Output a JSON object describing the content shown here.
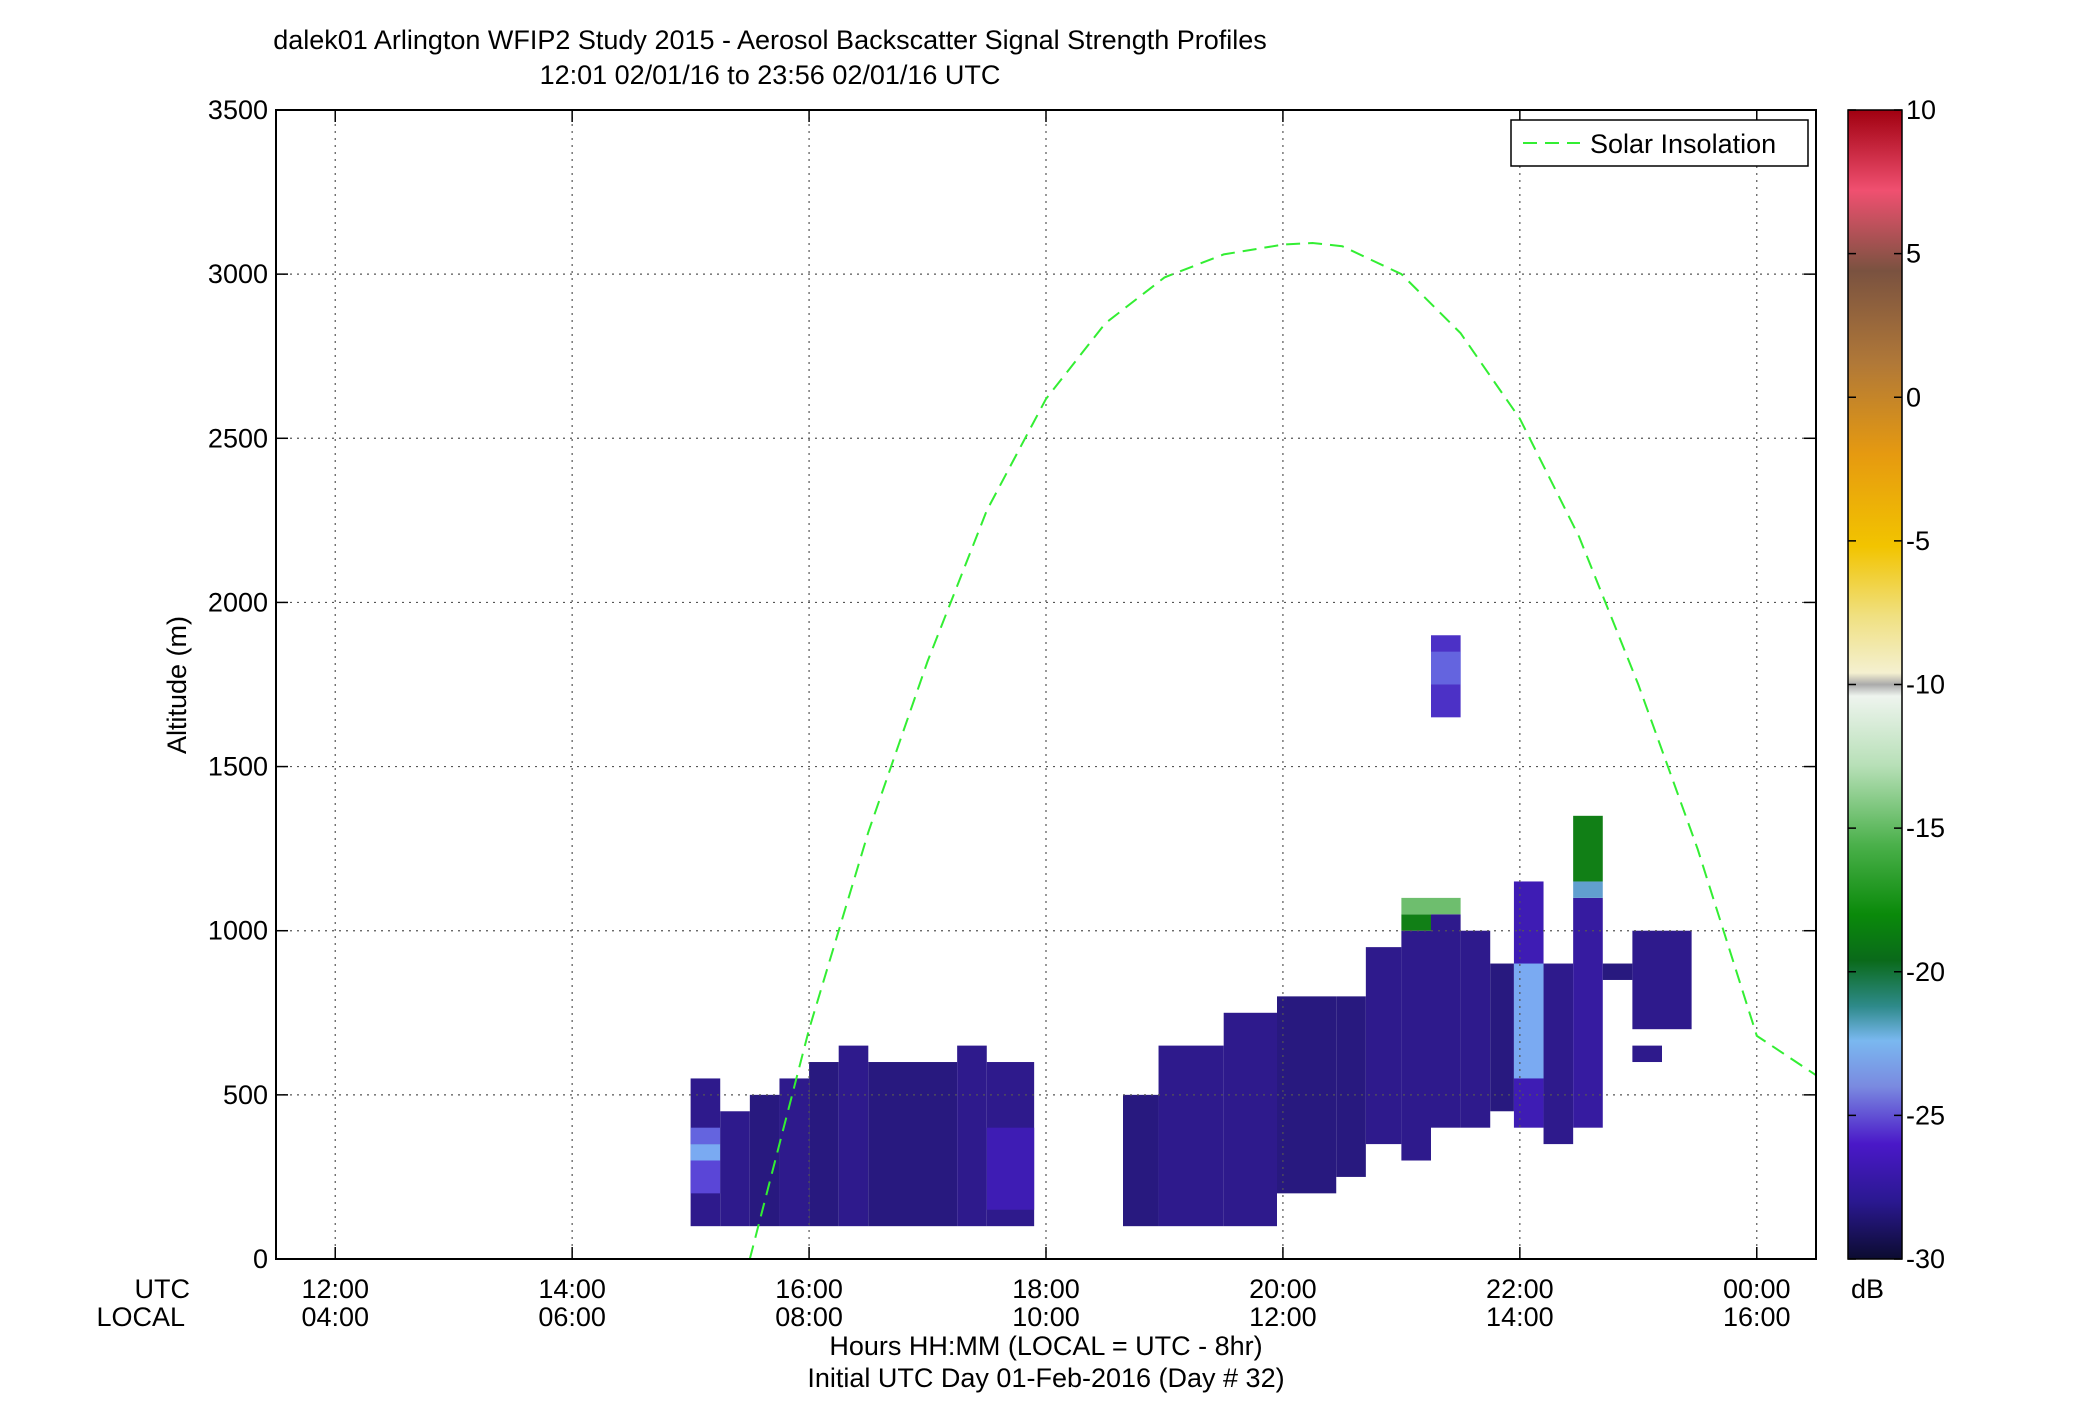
{
  "chart_data": {
    "type": "heatmap",
    "title": "dalek01 Arlington WFIP2 Study 2015 - Aerosol Backscatter Signal Strength Profiles",
    "subtitle": "12:01 02/01/16 to 23:56 02/01/16  UTC",
    "xlabel": "Hours HH:MM  (LOCAL = UTC - 8hr)",
    "xlabel2": "Initial UTC Day 01-Feb-2016 (Day # 32)",
    "ylabel": "Altitude (m)",
    "x_row_labels": [
      "UTC",
      "LOCAL"
    ],
    "x_units": "hours UTC",
    "xlim": [
      11.5,
      24.5
    ],
    "ylim": [
      0,
      3500
    ],
    "grid": true,
    "xticks": [
      {
        "x": 12,
        "utc": "12:00",
        "local": "04:00"
      },
      {
        "x": 14,
        "utc": "14:00",
        "local": "06:00"
      },
      {
        "x": 16,
        "utc": "16:00",
        "local": "08:00"
      },
      {
        "x": 18,
        "utc": "18:00",
        "local": "10:00"
      },
      {
        "x": 20,
        "utc": "20:00",
        "local": "12:00"
      },
      {
        "x": 22,
        "utc": "22:00",
        "local": "14:00"
      },
      {
        "x": 24,
        "utc": "00:00",
        "local": "16:00"
      }
    ],
    "yticks": [
      0,
      500,
      1000,
      1500,
      2000,
      2500,
      3000,
      3500
    ],
    "legend": {
      "placement": "top-right",
      "entries": [
        "Solar Insolation"
      ]
    },
    "solar_insolation": {
      "name": "Solar Insolation",
      "color": "#33ee33",
      "style": "dashed",
      "x": [
        15.5,
        16.0,
        16.5,
        17.0,
        17.5,
        18.0,
        18.5,
        19.0,
        19.5,
        20.0,
        20.25,
        20.5,
        21.0,
        21.5,
        22.0,
        22.5,
        23.0,
        23.5,
        24.0,
        24.5
      ],
      "y": [
        0,
        700,
        1300,
        1820,
        2280,
        2620,
        2850,
        2990,
        3060,
        3090,
        3095,
        3085,
        3000,
        2820,
        2560,
        2200,
        1750,
        1250,
        680,
        560
      ]
    },
    "colorbar": {
      "label": "dB",
      "min": -30,
      "max": 10,
      "ticks": [
        10,
        5,
        0,
        -5,
        -10,
        -15,
        -20,
        -25,
        -30
      ]
    },
    "cell_units": {
      "x0_x1": "hours UTC",
      "y0_y1": "m",
      "v": "dB"
    },
    "cells": [
      {
        "x0": 15.0,
        "x1": 15.25,
        "y0": 100,
        "y1": 550,
        "v": -26.5
      },
      {
        "x0": 15.0,
        "x1": 15.25,
        "y0": 200,
        "y1": 300,
        "v": -24.5
      },
      {
        "x0": 15.0,
        "x1": 15.25,
        "y0": 300,
        "y1": 350,
        "v": -22.5
      },
      {
        "x0": 15.0,
        "x1": 15.25,
        "y0": 350,
        "y1": 400,
        "v": -24.0
      },
      {
        "x0": 15.25,
        "x1": 15.5,
        "y0": 100,
        "y1": 450,
        "v": -26.5
      },
      {
        "x0": 15.5,
        "x1": 15.75,
        "y0": 100,
        "y1": 500,
        "v": -27.0
      },
      {
        "x0": 15.75,
        "x1": 16.0,
        "y0": 100,
        "y1": 550,
        "v": -26.5
      },
      {
        "x0": 16.0,
        "x1": 16.25,
        "y0": 100,
        "y1": 600,
        "v": -27.0
      },
      {
        "x0": 16.25,
        "x1": 16.5,
        "y0": 100,
        "y1": 650,
        "v": -26.5
      },
      {
        "x0": 16.5,
        "x1": 17.25,
        "y0": 100,
        "y1": 600,
        "v": -27.0
      },
      {
        "x0": 17.25,
        "x1": 17.5,
        "y0": 100,
        "y1": 650,
        "v": -26.5
      },
      {
        "x0": 17.5,
        "x1": 17.9,
        "y0": 100,
        "y1": 600,
        "v": -26.5
      },
      {
        "x0": 17.5,
        "x1": 17.9,
        "y0": 150,
        "y1": 400,
        "v": -25.5
      },
      {
        "x0": 18.65,
        "x1": 18.95,
        "y0": 100,
        "y1": 500,
        "v": -27.0
      },
      {
        "x0": 18.95,
        "x1": 19.5,
        "y0": 100,
        "y1": 650,
        "v": -26.5
      },
      {
        "x0": 19.5,
        "x1": 19.95,
        "y0": 100,
        "y1": 750,
        "v": -26.5
      },
      {
        "x0": 19.95,
        "x1": 20.45,
        "y0": 200,
        "y1": 800,
        "v": -27.0
      },
      {
        "x0": 20.45,
        "x1": 20.7,
        "y0": 250,
        "y1": 800,
        "v": -27.0
      },
      {
        "x0": 20.7,
        "x1": 21.0,
        "y0": 350,
        "y1": 950,
        "v": -26.5
      },
      {
        "x0": 21.0,
        "x1": 21.25,
        "y0": 300,
        "y1": 1000,
        "v": -26.5
      },
      {
        "x0": 21.0,
        "x1": 21.25,
        "y0": 1000,
        "y1": 1050,
        "v": -18.5
      },
      {
        "x0": 21.0,
        "x1": 21.25,
        "y0": 1050,
        "y1": 1100,
        "v": -15.5
      },
      {
        "x0": 21.25,
        "x1": 21.5,
        "y0": 400,
        "y1": 1050,
        "v": -26.5
      },
      {
        "x0": 21.25,
        "x1": 21.5,
        "y0": 1050,
        "y1": 1100,
        "v": -15.5
      },
      {
        "x0": 21.5,
        "x1": 21.75,
        "y0": 400,
        "y1": 1000,
        "v": -26.5
      },
      {
        "x0": 21.75,
        "x1": 21.95,
        "y0": 450,
        "y1": 900,
        "v": -27.0
      },
      {
        "x0": 21.95,
        "x1": 22.2,
        "y0": 400,
        "y1": 1150,
        "v": -25.5
      },
      {
        "x0": 21.95,
        "x1": 22.2,
        "y0": 550,
        "y1": 900,
        "v": -22.5
      },
      {
        "x0": 22.2,
        "x1": 22.45,
        "y0": 350,
        "y1": 900,
        "v": -26.5
      },
      {
        "x0": 22.45,
        "x1": 22.7,
        "y0": 400,
        "y1": 1100,
        "v": -26.0
      },
      {
        "x0": 22.45,
        "x1": 22.7,
        "y0": 1100,
        "y1": 1150,
        "v": -22.0
      },
      {
        "x0": 22.45,
        "x1": 22.7,
        "y0": 1150,
        "y1": 1350,
        "v": -18.5
      },
      {
        "x0": 22.7,
        "x1": 22.95,
        "y0": 850,
        "y1": 900,
        "v": -27.0
      },
      {
        "x0": 22.95,
        "x1": 23.45,
        "y0": 700,
        "y1": 1000,
        "v": -26.5
      },
      {
        "x0": 22.95,
        "x1": 23.2,
        "y0": 600,
        "y1": 650,
        "v": -26.5
      },
      {
        "x0": 21.25,
        "x1": 21.5,
        "y0": 1650,
        "y1": 1900,
        "v": -25.0
      },
      {
        "x0": 21.25,
        "x1": 21.5,
        "y0": 1750,
        "y1": 1850,
        "v": -24.0
      }
    ]
  }
}
